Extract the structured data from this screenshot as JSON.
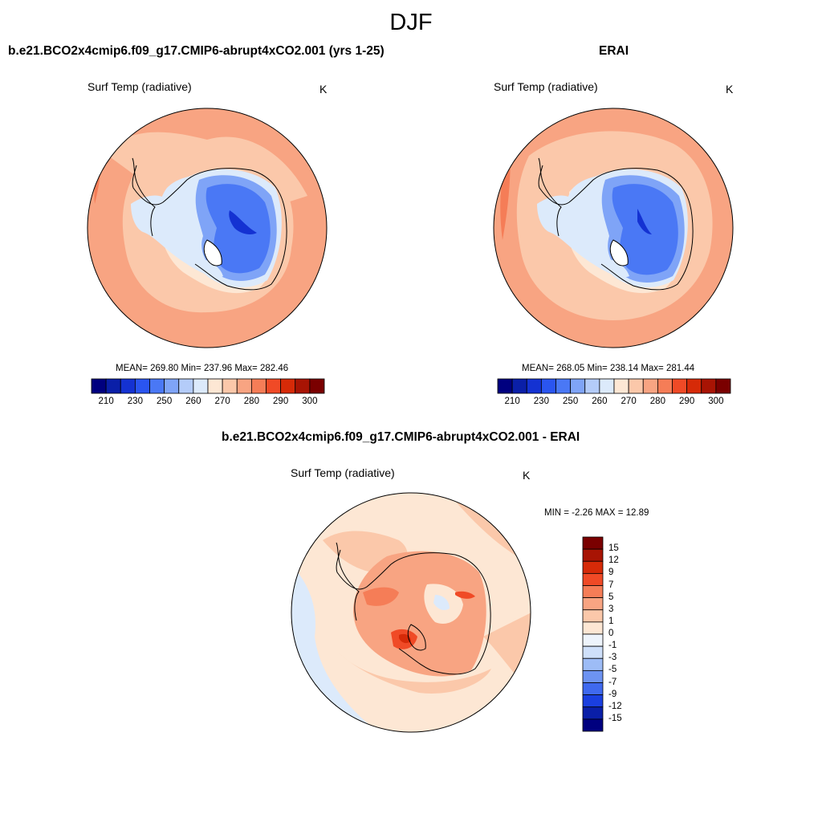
{
  "figure": {
    "title": "DJF",
    "unit": "K",
    "variable": "Surf Temp (radiative)"
  },
  "panels": [
    {
      "id": "model",
      "title": "b.e21.BCO2x4cmip6.f09_g17.CMIP6-abrupt4xCO2.001 (yrs 1-25)",
      "variable": "Surf Temp (radiative)",
      "unit": "K",
      "stats_text": "MEAN= 269.80  Min= 237.96  Max= 282.46",
      "mean": 269.8,
      "min": 237.96,
      "max": 282.46
    },
    {
      "id": "obs",
      "title": "ERAI",
      "variable": "Surf Temp (radiative)",
      "unit": "K",
      "stats_text": "MEAN= 268.05  Min= 238.14  Max= 281.44",
      "mean": 268.05,
      "min": 238.14,
      "max": 281.44
    },
    {
      "id": "diff",
      "title": "b.e21.BCO2x4cmip6.f09_g17.CMIP6-abrupt4xCO2.001 - ERAI",
      "variable": "Surf Temp (radiative)",
      "unit": "K",
      "stats_text": "MIN =  -2.26 MAX =  12.89",
      "min": -2.26,
      "max": 12.89
    }
  ],
  "abs_colorbar": {
    "tick_labels": [
      "210",
      "230",
      "250",
      "260",
      "270",
      "280",
      "290",
      "300"
    ],
    "colors": [
      "#00007f",
      "#0a1fa8",
      "#1432d2",
      "#2a55f0",
      "#4a78f5",
      "#7fa4f7",
      "#b4ccf9",
      "#dceafb",
      "#fde7d4",
      "#fbc8aa",
      "#f8a482",
      "#f57d57",
      "#f04a26",
      "#d62a08",
      "#a81404",
      "#7a0000"
    ]
  },
  "diff_colorbar": {
    "tick_labels": [
      "15",
      "12",
      "9",
      "7",
      "5",
      "3",
      "1",
      "0",
      "-1",
      "-3",
      "-5",
      "-7",
      "-9",
      "-12",
      "-15"
    ],
    "colors": [
      "#7a0000",
      "#a81404",
      "#d62a08",
      "#f04a26",
      "#f57d57",
      "#f8a482",
      "#fbc8aa",
      "#fde7d4",
      "#eef4fc",
      "#cfe0fa",
      "#9dbcf6",
      "#6d93f2",
      "#3f69ef",
      "#1a3fe0",
      "#0a1fa8",
      "#00007f"
    ]
  }
}
